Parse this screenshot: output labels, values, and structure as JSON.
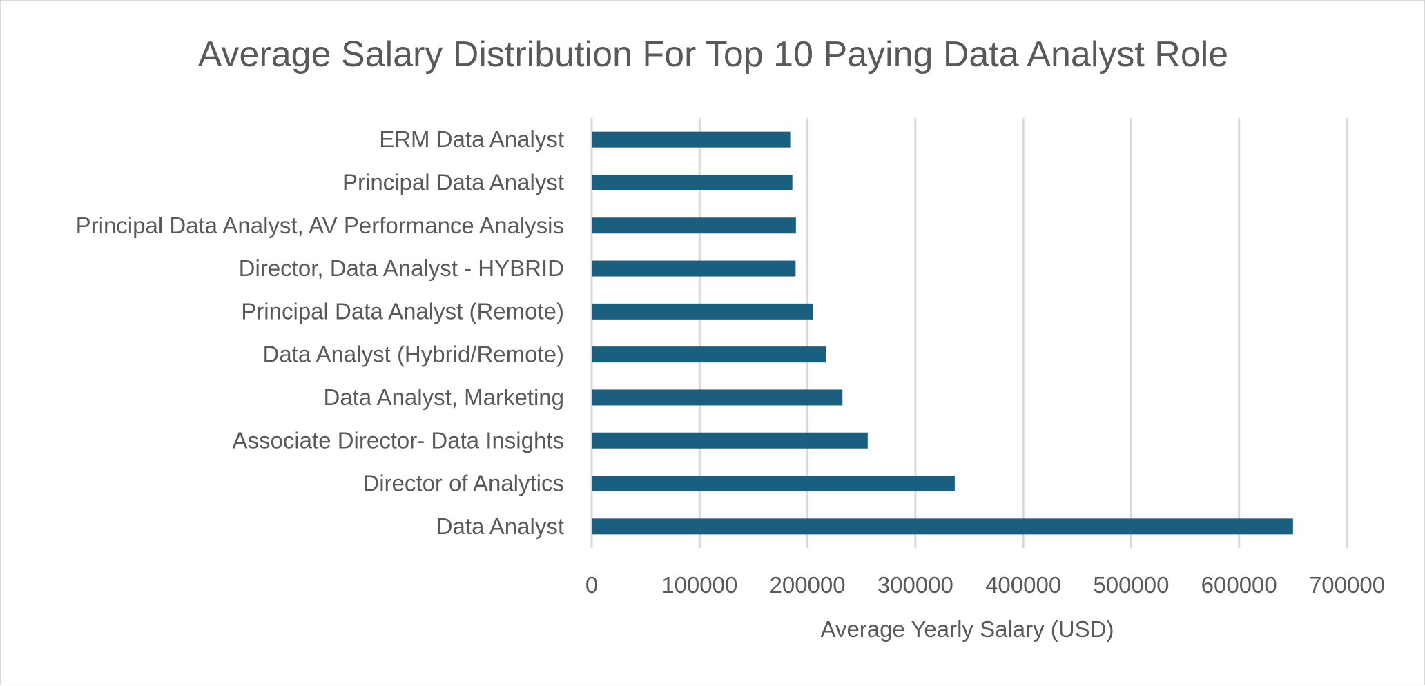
{
  "chart_data": {
    "type": "bar",
    "orientation": "horizontal",
    "title": "Average Salary Distribution For Top 10 Paying Data Analyst Role",
    "xlabel": "Average Yearly Salary (USD)",
    "ylabel": "",
    "categories": [
      "ERM Data Analyst",
      "Principal Data Analyst",
      "Principal Data Analyst, AV Performance Analysis",
      "Director, Data Analyst - HYBRID",
      "Principal Data Analyst (Remote)",
      "Data Analyst (Hybrid/Remote)",
      "Data Analyst, Marketing",
      "Associate Director- Data Insights",
      "Director of Analytics",
      "Data Analyst"
    ],
    "values": [
      184000,
      186000,
      189309,
      189000,
      205000,
      217000,
      232423,
      255830,
      336500,
      650000
    ],
    "xlim": [
      0,
      700000
    ],
    "xticks": [
      "0",
      "100000",
      "200000",
      "300000",
      "400000",
      "500000",
      "600000",
      "700000"
    ],
    "grid": "vertical",
    "legend": "none",
    "bar_color": "#1a5e80"
  }
}
